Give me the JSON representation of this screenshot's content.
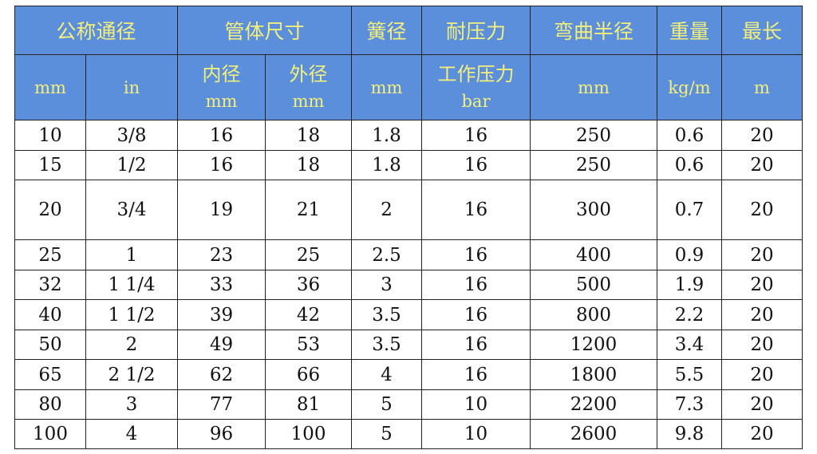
{
  "header": {
    "row1": [
      {
        "text": "公称通径",
        "span": 2
      },
      {
        "text": "管体尺寸",
        "span": 2
      },
      {
        "text": "簧径",
        "span": 1
      },
      {
        "text": "耐压力",
        "span": 1
      },
      {
        "text": "弯曲半径",
        "span": 1
      },
      {
        "text": "重量",
        "span": 1
      },
      {
        "text": "最长",
        "span": 1
      }
    ],
    "row2": [
      [
        "mm"
      ],
      [
        "in"
      ],
      [
        "内径",
        "mm"
      ],
      [
        "外径",
        "mm"
      ],
      [
        "mm"
      ],
      [
        "工作压力",
        "bar"
      ],
      [
        "mm"
      ],
      [
        "kg/m"
      ],
      [
        "m"
      ]
    ]
  },
  "rows": [
    [
      "10",
      "3/8",
      "16",
      "18",
      "1.8",
      "16",
      "250",
      "0.6",
      "20"
    ],
    [
      "15",
      "1/2",
      "16",
      "18",
      "1.8",
      "16",
      "250",
      "0.6",
      "20"
    ],
    [
      "20",
      "3/4",
      "19",
      "21",
      "2",
      "16",
      "300",
      "0.7",
      "20"
    ],
    [
      "25",
      "1",
      "23",
      "25",
      "2.5",
      "16",
      "400",
      "0.9",
      "20"
    ],
    [
      "32",
      "1 1/4",
      "33",
      "36",
      "3",
      "16",
      "500",
      "1.9",
      "20"
    ],
    [
      "40",
      "1 1/2",
      "39",
      "42",
      "3.5",
      "16",
      "800",
      "2.2",
      "20"
    ],
    [
      "50",
      "2",
      "49",
      "53",
      "3.5",
      "16",
      "1200",
      "3.4",
      "20"
    ],
    [
      "65",
      "2 1/2",
      "62",
      "66",
      "4",
      "16",
      "1800",
      "5.5",
      "20"
    ],
    [
      "80",
      "3",
      "77",
      "81",
      "5",
      "10",
      "2200",
      "7.3",
      "20"
    ],
    [
      "100",
      "4",
      "96",
      "100",
      "5",
      "10",
      "2600",
      "9.8",
      "20"
    ]
  ]
}
